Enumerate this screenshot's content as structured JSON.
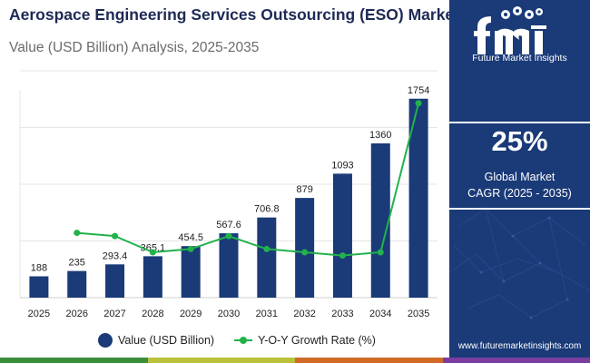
{
  "header": {
    "title": "Aerospace Engineering Services Outsourcing (ESO) Market",
    "subtitle": "Value (USD Billion) Analysis, 2025-2035"
  },
  "colors": {
    "bar": "#1a3a78",
    "line": "#22b24c",
    "panel": "#1a3a78",
    "strip": [
      "#3a8e3a",
      "#b8c23a",
      "#d06a26",
      "#7a3ea0"
    ]
  },
  "chart_data": {
    "type": "bar",
    "title": "Aerospace Engineering Services Outsourcing (ESO) Market",
    "subtitle": "Value (USD Billion) Analysis, 2025-2035",
    "categories": [
      "2025",
      "2026",
      "2027",
      "2028",
      "2029",
      "2030",
      "2031",
      "2032",
      "2033",
      "2034",
      "2035"
    ],
    "series": [
      {
        "name": "Value (USD Billion)",
        "type": "bar",
        "values": [
          188,
          235,
          293.4,
          365.1,
          454.5,
          567.6,
          706.8,
          879,
          1093,
          1360,
          1754
        ],
        "labels": [
          "188",
          "235",
          "293.4",
          "365.1",
          "454.5",
          "567.6",
          "706.8",
          "879",
          "1093",
          "1360",
          "1754"
        ]
      },
      {
        "name": "Y-O-Y Growth Rate (%)",
        "type": "line",
        "x": [
          "2026",
          "2027",
          "2028",
          "2029",
          "2030",
          "2031",
          "2032",
          "2033",
          "2034",
          "2035"
        ],
        "values": [
          25,
          24.9,
          24.4,
          24.5,
          24.9,
          24.5,
          24.4,
          24.3,
          24.4,
          29.0
        ]
      }
    ],
    "ylim": [
      0,
      2000
    ],
    "y2lim": [
      23,
      30
    ],
    "xlabel": "",
    "ylabel": "",
    "grid": true,
    "legend": "bottom"
  },
  "legend": {
    "bar_label": "Value (USD Billion)",
    "line_label": "Y-O-Y Growth Rate (%)"
  },
  "side_panel": {
    "logo_name": "Future Market Insights",
    "cagr_value": "25%",
    "cagr_line1": "Global Market",
    "cagr_line2": "CAGR (2025 - 2035)",
    "website": "www.futuremarketinsights.com"
  }
}
